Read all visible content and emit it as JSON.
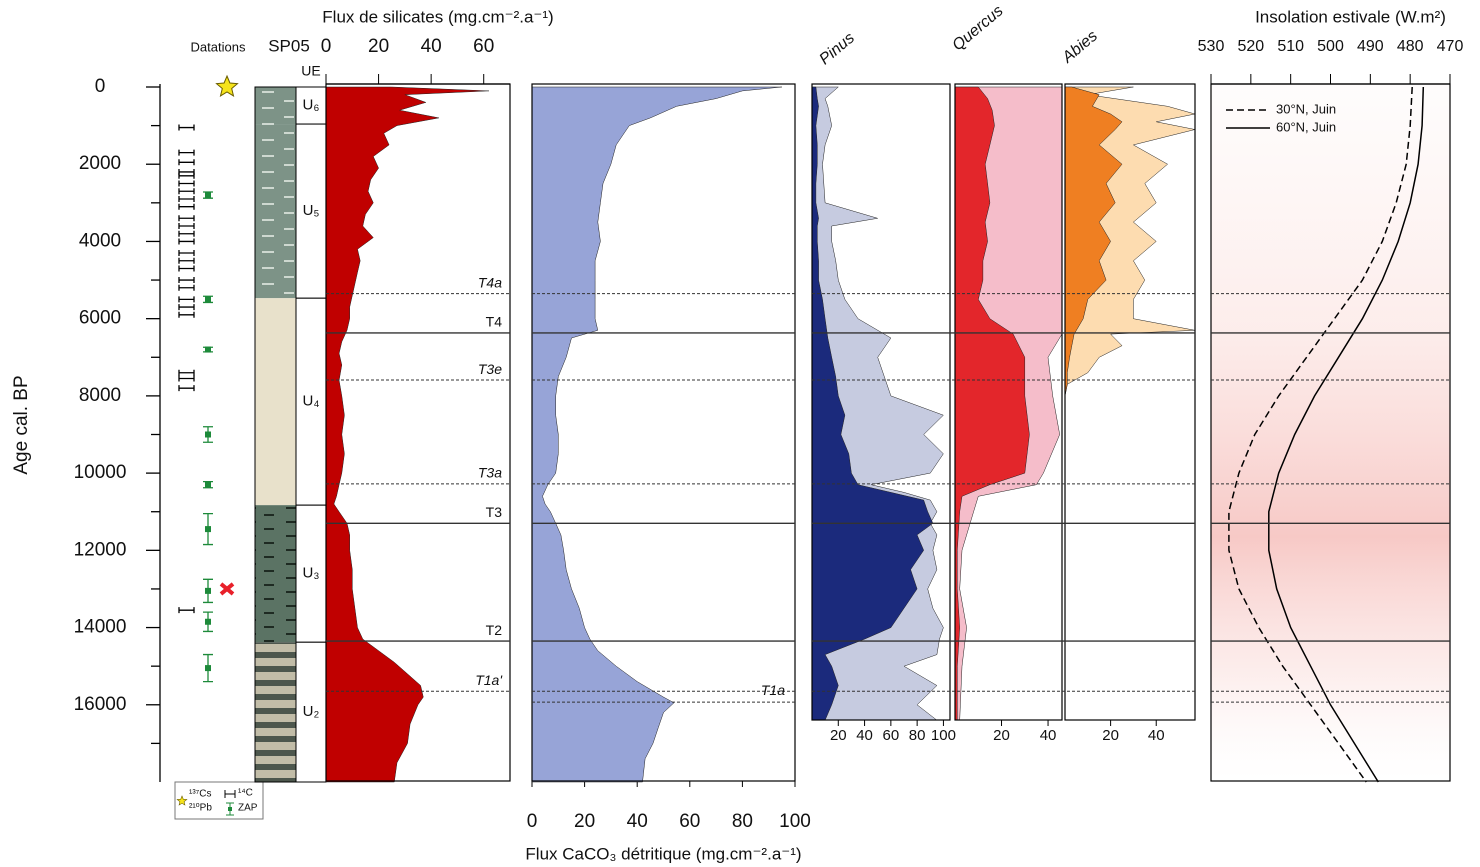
{
  "chart_data": [
    {
      "type": "dates",
      "title": "Datations",
      "ylabel": "Age cal. BP",
      "ylim": [
        0,
        18000
      ],
      "yticks": [
        0,
        2000,
        4000,
        6000,
        8000,
        10000,
        12000,
        14000,
        16000
      ],
      "yminorticks": [
        1000,
        3000,
        5000,
        7000,
        9000,
        11000,
        13000,
        15000,
        17000
      ],
      "c14_ages": [
        1050,
        1700,
        1950,
        2200,
        2300,
        2500,
        2700,
        2900,
        3100,
        3400,
        3600,
        3800,
        4000,
        4300,
        4500,
        4700,
        5000,
        5200,
        5500,
        5700,
        5900,
        7400,
        7550,
        7800,
        13550
      ],
      "zap_ages": [
        2800,
        5500,
        6800,
        9000,
        10300,
        11450,
        13050,
        13850,
        15050
      ],
      "zap_errors": [
        80,
        80,
        60,
        200,
        80,
        400,
        300,
        250,
        350
      ],
      "cs_pb_ages": [
        0
      ],
      "cross_ages": [
        13000
      ],
      "cross_color": "#e8202a",
      "legend": {
        "cs": "¹³⁷Cs",
        "pb": "²¹⁰Pb",
        "c14": "¹⁴C",
        "zap": "ZAP"
      }
    },
    {
      "type": "lithology",
      "title": "SP05",
      "units": [
        {
          "label": "UE"
        },
        {
          "label": "U₆",
          "top": 0,
          "bottom": 960,
          "pattern": "green"
        },
        {
          "label": "U₅",
          "top": 960,
          "bottom": 5470,
          "pattern": "green"
        },
        {
          "label": "U₄",
          "top": 5470,
          "bottom": 10830,
          "pattern": "beige"
        },
        {
          "label": "U₃",
          "top": 10830,
          "bottom": 14380,
          "pattern": "dark"
        },
        {
          "label": "U₂",
          "top": 14380,
          "bottom": 18000,
          "pattern": "bands"
        }
      ]
    },
    {
      "type": "area",
      "title": "Flux de silicates (mg.cm⁻².a⁻¹)",
      "xlim": [
        0,
        70
      ],
      "xticks": [
        0,
        20,
        40,
        60
      ],
      "ages": [
        0,
        100,
        200,
        400,
        600,
        800,
        1000,
        1200,
        1500,
        1800,
        2100,
        2400,
        2700,
        3000,
        3300,
        3600,
        3900,
        4200,
        4500,
        4800,
        5100,
        5400,
        5700,
        6000,
        6300,
        6600,
        6900,
        7200,
        7600,
        8000,
        8500,
        9000,
        9500,
        10000,
        10300,
        10600,
        10800,
        11000,
        11300,
        11600,
        12000,
        12500,
        13000,
        13500,
        14000,
        14300,
        14600,
        14900,
        15200,
        15500,
        15800,
        16000,
        16500,
        17000,
        17500,
        18000
      ],
      "series": [
        {
          "color": "#c00000",
          "values": [
            25,
            62,
            30,
            38,
            28,
            43,
            27,
            22,
            24,
            18,
            20,
            17,
            16,
            18,
            15,
            14,
            18,
            12,
            13,
            12,
            11,
            10,
            9,
            9,
            8,
            6,
            5,
            6,
            5,
            6,
            7,
            6,
            7,
            6,
            5,
            4,
            3,
            5,
            8,
            9,
            9,
            10,
            10,
            11,
            12,
            14,
            20,
            26,
            31,
            36,
            37,
            35,
            32,
            31,
            27,
            26
          ]
        }
      ],
      "events": [
        {
          "label": "T4a",
          "age": 5350,
          "style": "dashed"
        },
        {
          "label": "T4",
          "age": 6370,
          "style": "solid"
        },
        {
          "label": "T3e",
          "age": 7590,
          "style": "dashed"
        },
        {
          "label": "T3a",
          "age": 10280,
          "style": "dashed"
        },
        {
          "label": "T3",
          "age": 11300,
          "style": "solid"
        },
        {
          "label": "T2",
          "age": 14350,
          "style": "solid"
        },
        {
          "label": "T1a'",
          "age": 15650,
          "style": "dashed"
        }
      ]
    },
    {
      "type": "area",
      "title": "Flux CaCO₃ détritique (mg.cm⁻².a⁻¹)",
      "xlim": [
        0,
        100
      ],
      "xticks": [
        0,
        20,
        40,
        60,
        80,
        100
      ],
      "ages": [
        0,
        100,
        300,
        500,
        800,
        1000,
        1500,
        2000,
        2500,
        3000,
        3500,
        4000,
        4500,
        5000,
        5500,
        6000,
        6300,
        6500,
        7000,
        7500,
        8000,
        8500,
        9000,
        9500,
        10000,
        10300,
        10600,
        10800,
        11000,
        11300,
        11600,
        12000,
        12500,
        13000,
        13500,
        14000,
        14300,
        14600,
        15000,
        15400,
        15800,
        15950,
        16200,
        16600,
        17000,
        17400,
        18000
      ],
      "series": [
        {
          "color": "#97a4d7",
          "values": [
            95,
            80,
            70,
            55,
            45,
            37,
            32,
            30,
            27,
            26,
            25,
            26,
            24,
            24,
            24,
            24,
            25,
            15,
            13,
            10,
            9,
            9,
            10,
            10,
            9,
            6,
            4,
            5,
            7,
            9,
            11,
            12,
            13,
            15,
            18,
            20,
            22,
            25,
            32,
            40,
            50,
            54,
            50,
            48,
            46,
            43,
            42
          ]
        }
      ],
      "events": [
        {
          "label": "T1a",
          "age": 15930,
          "style": "dashed"
        }
      ]
    },
    {
      "type": "area",
      "title": "Pinus",
      "xlim": [
        0,
        105
      ],
      "xticks": [
        20,
        40,
        60,
        80,
        100
      ],
      "ages": [
        0,
        300,
        500,
        1000,
        1500,
        2000,
        2500,
        3000,
        3400,
        3600,
        4000,
        4500,
        5000,
        5500,
        6000,
        6500,
        7000,
        7500,
        8000,
        8500,
        9000,
        9500,
        10000,
        10300,
        10500,
        10700,
        11000,
        11300,
        11600,
        12000,
        12500,
        13000,
        13500,
        14000,
        14300,
        14700,
        15000,
        15500,
        16000,
        16400
      ],
      "series": [
        {
          "color": "#c6cbe0",
          "values": [
            20,
            10,
            12,
            15,
            10,
            8,
            9,
            10,
            50,
            15,
            15,
            18,
            20,
            25,
            35,
            60,
            50,
            55,
            60,
            100,
            85,
            100,
            90,
            45,
            70,
            90,
            95,
            90,
            95,
            92,
            95,
            88,
            92,
            100,
            97,
            95,
            70,
            95,
            80,
            95
          ]
        },
        {
          "color": "#1b2a7c",
          "values": [
            3,
            4,
            5,
            3,
            4,
            4,
            3,
            3,
            5,
            4,
            4,
            5,
            5,
            8,
            10,
            12,
            15,
            18,
            20,
            25,
            22,
            28,
            30,
            35,
            60,
            85,
            88,
            92,
            80,
            85,
            75,
            80,
            70,
            60,
            40,
            10,
            15,
            20,
            15,
            10
          ]
        }
      ]
    },
    {
      "type": "area",
      "title": "Quercus",
      "xlim": [
        0,
        46
      ],
      "xticks": [
        20,
        40
      ],
      "ages": [
        0,
        300,
        600,
        1000,
        1500,
        2000,
        2500,
        3000,
        3500,
        4000,
        4500,
        5000,
        5500,
        6000,
        6400,
        7000,
        8000,
        9000,
        10000,
        10300,
        10600,
        11000,
        12000,
        13000,
        14000,
        15000,
        16400
      ],
      "series": [
        {
          "color": "#f5bdca",
          "values": [
            46,
            46,
            46,
            46,
            46,
            46,
            46,
            46,
            46,
            46,
            46,
            46,
            46,
            46,
            46,
            40,
            42,
            45,
            38,
            35,
            10,
            8,
            3,
            2,
            5,
            3,
            2
          ]
        },
        {
          "color": "#e3262b",
          "values": [
            10,
            14,
            16,
            17,
            15,
            13,
            14,
            15,
            13,
            14,
            12,
            12,
            10,
            15,
            25,
            30,
            30,
            32,
            30,
            15,
            3,
            2,
            1,
            1,
            2,
            1,
            1
          ]
        }
      ]
    },
    {
      "type": "area",
      "title": "Abies",
      "xlim": [
        0,
        57
      ],
      "xticks": [
        20,
        40
      ],
      "ages": [
        0,
        200,
        500,
        700,
        900,
        1100,
        1500,
        2000,
        2500,
        3000,
        3500,
        4000,
        4500,
        5000,
        5500,
        6000,
        6300,
        6400,
        6700,
        7000,
        7400,
        7700,
        8000,
        16400
      ],
      "series": [
        {
          "color": "#fddcb0",
          "values": [
            30,
            10,
            45,
            57,
            40,
            57,
            30,
            45,
            35,
            40,
            30,
            40,
            30,
            35,
            30,
            30,
            57,
            20,
            25,
            15,
            10,
            1,
            0,
            0
          ]
        },
        {
          "color": "#ef7f22",
          "values": [
            3,
            15,
            12,
            20,
            25,
            22,
            15,
            25,
            18,
            22,
            15,
            20,
            15,
            18,
            10,
            8,
            5,
            4,
            3,
            2,
            1,
            1,
            0,
            0
          ]
        }
      ]
    },
    {
      "type": "line",
      "title": "Insolation estivale (W.m²)",
      "xlim": [
        530,
        470
      ],
      "xticks": [
        530,
        520,
        510,
        500,
        490,
        480,
        470
      ],
      "ages": [
        0,
        1000,
        2000,
        3000,
        4000,
        5000,
        6000,
        7000,
        8000,
        9000,
        10000,
        11000,
        12000,
        13000,
        14000,
        15000,
        16000,
        17000,
        18000
      ],
      "series": [
        {
          "name": "30°N, Juin",
          "color": "#000000",
          "dash": true,
          "values": [
            479.5,
            480,
            481,
            483.5,
            487,
            492,
            499,
            506,
            513,
            519,
            523,
            525.5,
            525.5,
            523,
            518,
            512,
            505,
            498,
            491
          ]
        },
        {
          "name": "60°N, Juin",
          "color": "#000000",
          "dash": false,
          "values": [
            476.7,
            477,
            478,
            480,
            483,
            487,
            492,
            498,
            504,
            509,
            513,
            515.5,
            515.5,
            513.5,
            510,
            505,
            500,
            494,
            488
          ]
        }
      ]
    }
  ]
}
